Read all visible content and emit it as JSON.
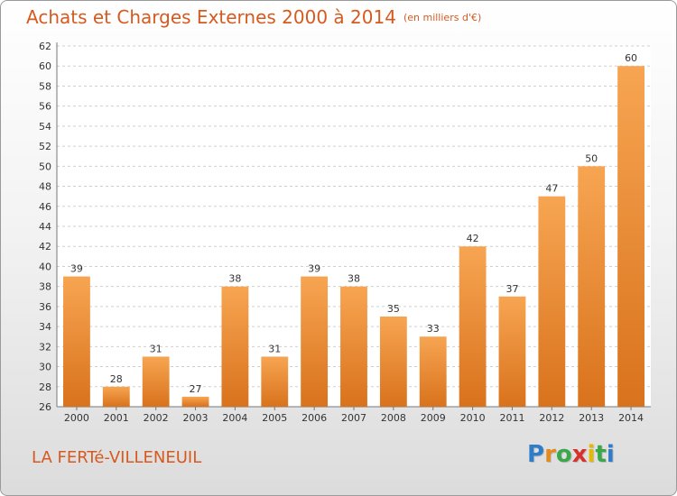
{
  "title": {
    "main": "Achats et Charges Externes 2000 à 2014",
    "unit": "(en milliers d'€)"
  },
  "location": "LA FERTé-VILLENEUIL",
  "brand": {
    "letters": [
      "P",
      "r",
      "o",
      "x",
      "i",
      "t",
      "i"
    ],
    "colors": [
      "#2f7dc8",
      "#e58a1f",
      "#3aa84a",
      "#d8302a",
      "#e6b800",
      "#3aa84a",
      "#2f7dc8"
    ]
  },
  "colors": {
    "bar_light": "#f7a552",
    "bar_dark": "#d9721c",
    "accent": "#d65a1f"
  },
  "chart_data": {
    "type": "bar",
    "categories": [
      "2000",
      "2001",
      "2002",
      "2003",
      "2004",
      "2005",
      "2006",
      "2007",
      "2008",
      "2009",
      "2010",
      "2011",
      "2012",
      "2013",
      "2014"
    ],
    "values": [
      39,
      28,
      31,
      27,
      38,
      31,
      39,
      38,
      35,
      33,
      42,
      37,
      47,
      50,
      60
    ],
    "ylim": [
      26,
      62
    ],
    "yticks": [
      26,
      28,
      30,
      32,
      34,
      36,
      38,
      40,
      42,
      44,
      46,
      48,
      50,
      52,
      54,
      56,
      58,
      60,
      62
    ],
    "grid": true,
    "xlabel": "",
    "ylabel": ""
  }
}
